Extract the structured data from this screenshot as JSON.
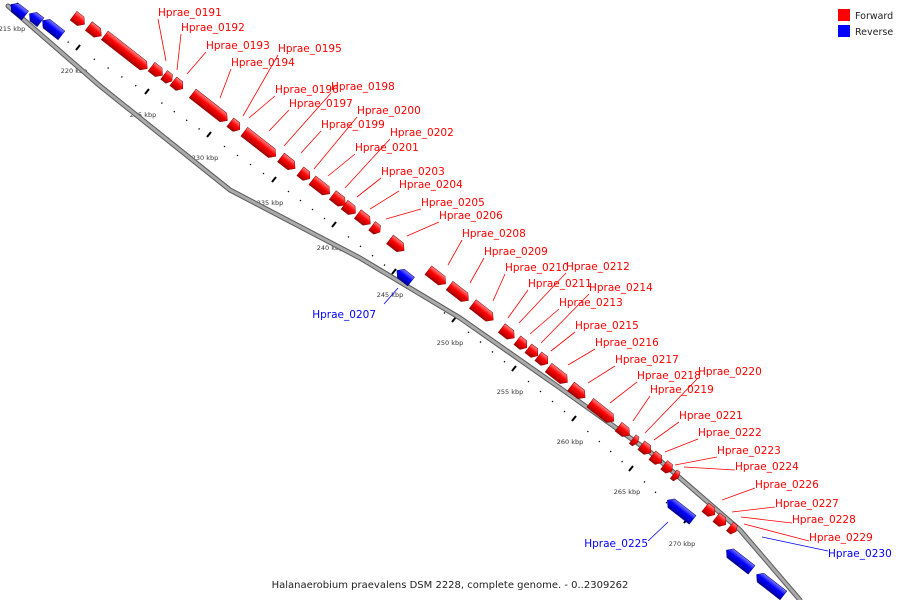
{
  "caption": "Halanaerobium praevalens DSM 2228, complete genome. - 0..2309262",
  "legend": [
    {
      "label": "Forward",
      "color": "#ff0000"
    },
    {
      "label": "Reverse",
      "color": "#0000ff"
    }
  ],
  "colors": {
    "forward": "#ff0000",
    "reverse": "#0000ff",
    "backbone": "#aaaaaa"
  },
  "kbp_ticks": [
    "215 kbp",
    "220 kbp",
    "225 kbp",
    "230 kbp",
    "235 kbp",
    "240 kbp",
    "245 kbp",
    "250 kbp",
    "255 kbp",
    "260 kbp",
    "265 kbp",
    "270 kbp"
  ],
  "genes": [
    {
      "name": "Hprae_0191",
      "strand": "forward"
    },
    {
      "name": "Hprae_0192",
      "strand": "forward"
    },
    {
      "name": "Hprae_0193",
      "strand": "forward"
    },
    {
      "name": "Hprae_0194",
      "strand": "forward"
    },
    {
      "name": "Hprae_0195",
      "strand": "forward"
    },
    {
      "name": "Hprae_0196",
      "strand": "forward"
    },
    {
      "name": "Hprae_0197",
      "strand": "forward"
    },
    {
      "name": "Hprae_0198",
      "strand": "forward"
    },
    {
      "name": "Hprae_0199",
      "strand": "forward"
    },
    {
      "name": "Hprae_0200",
      "strand": "forward"
    },
    {
      "name": "Hprae_0201",
      "strand": "forward"
    },
    {
      "name": "Hprae_0202",
      "strand": "forward"
    },
    {
      "name": "Hprae_0203",
      "strand": "forward"
    },
    {
      "name": "Hprae_0204",
      "strand": "forward"
    },
    {
      "name": "Hprae_0205",
      "strand": "forward"
    },
    {
      "name": "Hprae_0206",
      "strand": "forward"
    },
    {
      "name": "Hprae_0207",
      "strand": "reverse"
    },
    {
      "name": "Hprae_0208",
      "strand": "forward"
    },
    {
      "name": "Hprae_0209",
      "strand": "forward"
    },
    {
      "name": "Hprae_0210",
      "strand": "forward"
    },
    {
      "name": "Hprae_0211",
      "strand": "forward"
    },
    {
      "name": "Hprae_0212",
      "strand": "forward"
    },
    {
      "name": "Hprae_0213",
      "strand": "forward"
    },
    {
      "name": "Hprae_0214",
      "strand": "forward"
    },
    {
      "name": "Hprae_0215",
      "strand": "forward"
    },
    {
      "name": "Hprae_0216",
      "strand": "forward"
    },
    {
      "name": "Hprae_0217",
      "strand": "forward"
    },
    {
      "name": "Hprae_0218",
      "strand": "forward"
    },
    {
      "name": "Hprae_0219",
      "strand": "forward"
    },
    {
      "name": "Hprae_0220",
      "strand": "forward"
    },
    {
      "name": "Hprae_0221",
      "strand": "forward"
    },
    {
      "name": "Hprae_0222",
      "strand": "forward"
    },
    {
      "name": "Hprae_0223",
      "strand": "forward"
    },
    {
      "name": "Hprae_0224",
      "strand": "forward"
    },
    {
      "name": "Hprae_0225",
      "strand": "reverse"
    },
    {
      "name": "Hprae_0226",
      "strand": "forward"
    },
    {
      "name": "Hprae_0227",
      "strand": "forward"
    },
    {
      "name": "Hprae_0228",
      "strand": "forward"
    },
    {
      "name": "Hprae_0229",
      "strand": "forward"
    },
    {
      "name": "Hprae_0230",
      "strand": "reverse"
    }
  ]
}
